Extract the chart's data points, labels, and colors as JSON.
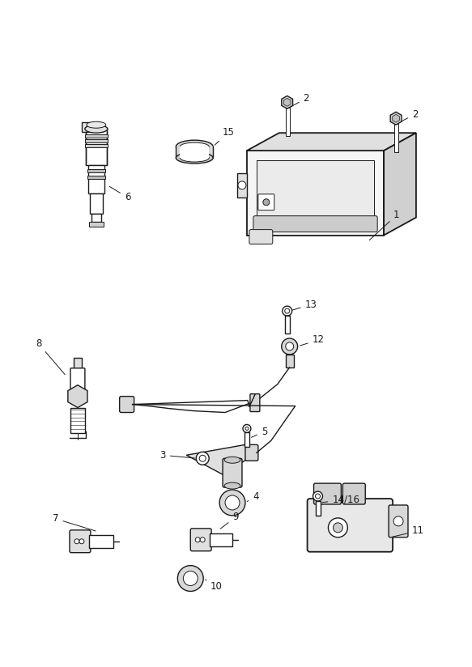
{
  "bg_color": "#ffffff",
  "line_color": "#1a1a1a",
  "label_color": "#000000",
  "fig_width": 5.83,
  "fig_height": 8.24,
  "dpi": 100
}
